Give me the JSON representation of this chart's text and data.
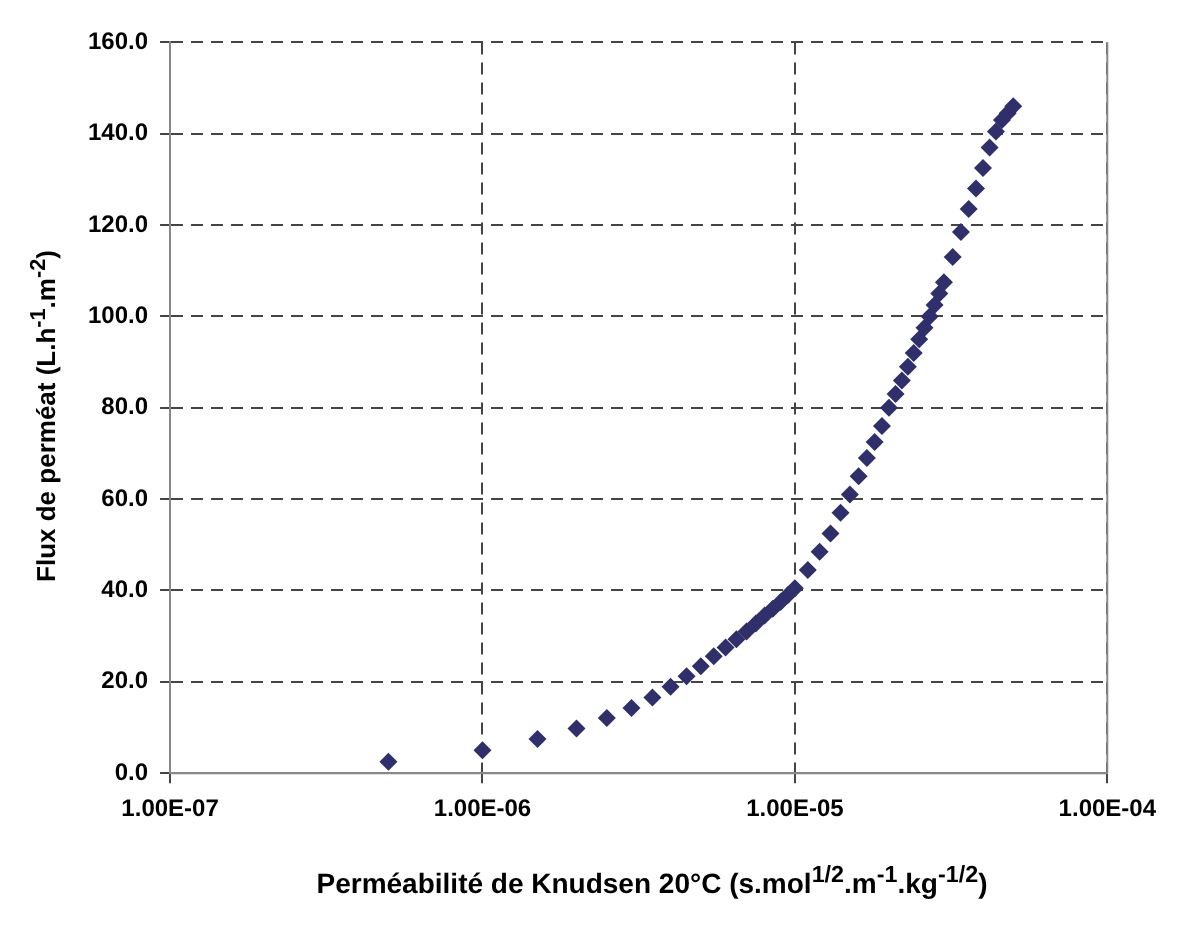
{
  "chart_data": {
    "type": "scatter",
    "xlabel": "Perméabilité de Knudsen 20°C (s.mol$^{1/2}$.m$^{-1}$.kg$^{-1/2}$)",
    "ylabel": "Flux de perméat (L.h$^{-1}$.m$^{-2}$)",
    "log": "x",
    "xlim": [
      1e-07,
      0.0001
    ],
    "ylim": [
      0,
      160
    ],
    "xticks": [
      {
        "value": 1e-07,
        "label": "1.00E-07"
      },
      {
        "value": 1e-06,
        "label": "1.00E-06"
      },
      {
        "value": 1e-05,
        "label": "1.00E-05"
      },
      {
        "value": 0.0001,
        "label": "1.00E-04"
      }
    ],
    "yticks": [
      {
        "value": 0,
        "label": "0.0"
      },
      {
        "value": 20,
        "label": "20.0"
      },
      {
        "value": 40,
        "label": "40.0"
      },
      {
        "value": 60,
        "label": "60.0"
      },
      {
        "value": 80,
        "label": "80.0"
      },
      {
        "value": 100,
        "label": "100.0"
      },
      {
        "value": 120,
        "label": "120.0"
      },
      {
        "value": 140,
        "label": "140.0"
      },
      {
        "value": 160,
        "label": "160.0"
      }
    ],
    "grid": true,
    "legend": false,
    "marker": "diamond",
    "series": [
      {
        "color": "#2e2f6b",
        "x": [
          5e-07,
          1e-06,
          1.5e-06,
          2e-06,
          2.5e-06,
          3e-06,
          3.5e-06,
          4e-06,
          4.5e-06,
          5e-06,
          5.5e-06,
          6e-06,
          6.5e-06,
          7e-06,
          7.5e-06,
          8e-06,
          8.5e-06,
          9e-06,
          9.5e-06,
          1e-05,
          1.1e-05,
          1.2e-05,
          1.3e-05,
          1.4e-05,
          1.5e-05,
          1.6e-05,
          1.7e-05,
          1.8e-05,
          1.9e-05,
          2e-05,
          2.1e-05,
          2.2e-05,
          2.3e-05,
          2.4e-05,
          2.5e-05,
          2.6e-05,
          2.7e-05,
          2.8e-05,
          2.9e-05,
          3e-05,
          3.2e-05,
          3.4e-05,
          3.6e-05,
          3.8e-05,
          4e-05,
          4.2e-05,
          4.4e-05,
          4.6e-05,
          4.8e-05,
          5e-05
        ],
        "values": [
          2.5,
          5,
          7.5,
          9.8,
          12.1,
          14.3,
          16.6,
          18.9,
          21.2,
          23.4,
          25.6,
          27.5,
          29.3,
          31,
          32.8,
          34.5,
          36,
          37.5,
          39,
          40.5,
          44.5,
          48.5,
          52.5,
          57,
          61,
          65,
          69,
          72.5,
          76,
          80,
          83,
          86,
          89,
          92,
          95,
          97.5,
          100,
          102.5,
          105,
          107.5,
          113,
          118.5,
          123.5,
          128,
          132.5,
          137,
          140.5,
          143,
          144.5,
          146
        ]
      }
    ]
  }
}
